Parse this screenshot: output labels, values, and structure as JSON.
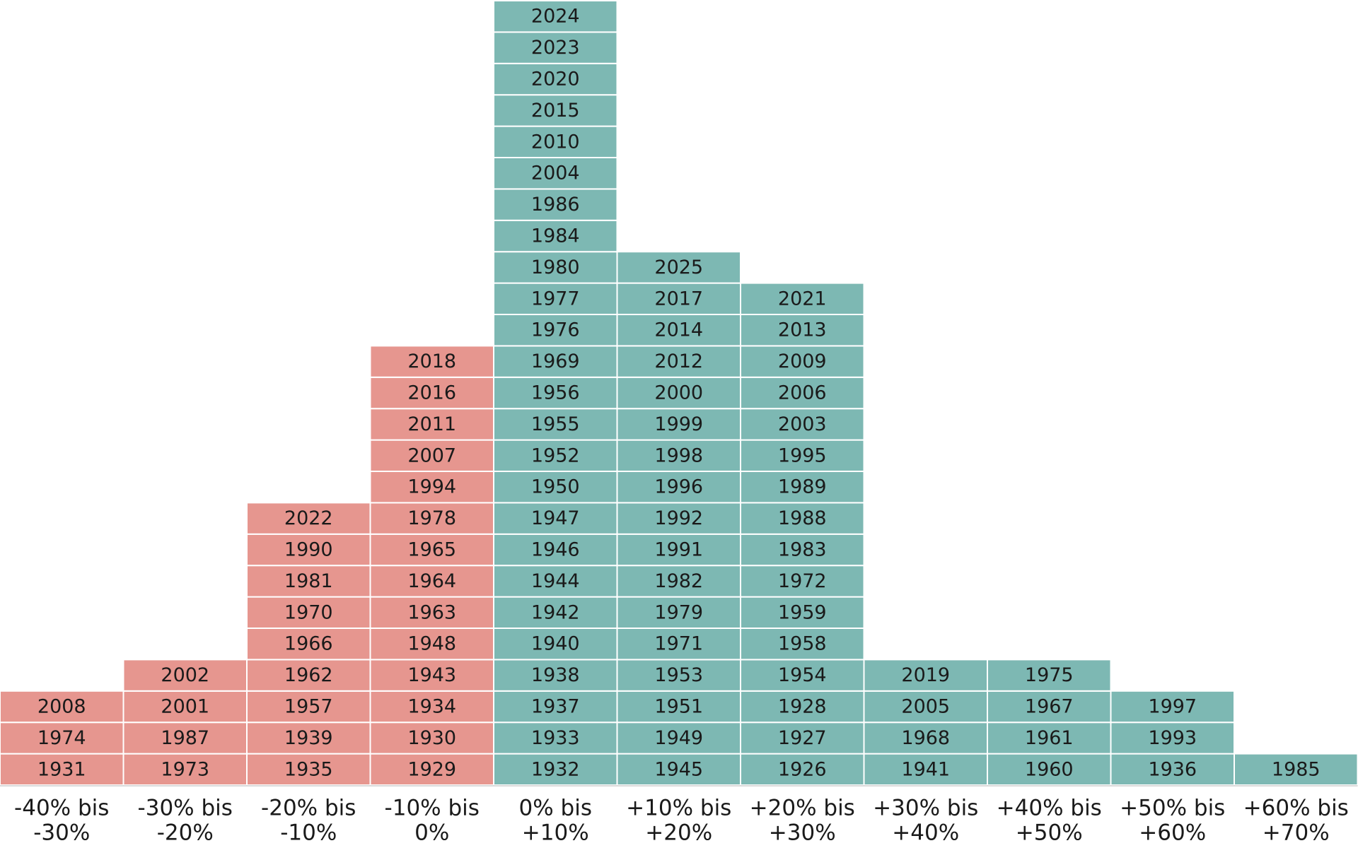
{
  "colors": {
    "negative": "#e6968f",
    "positive": "#7db8b3",
    "cell_border": "#ffffff",
    "axis_line": "#d9d9d9",
    "text": "#1a1a1a"
  },
  "chart_data": {
    "type": "histogram-stack",
    "title": "",
    "bins": [
      {
        "label_line1": "-40% bis",
        "label_line2": "-30%",
        "range": [
          -40,
          -30
        ],
        "sign": "negative",
        "years": [
          "1931",
          "1974",
          "2008"
        ]
      },
      {
        "label_line1": "-30% bis",
        "label_line2": "-20%",
        "range": [
          -30,
          -20
        ],
        "sign": "negative",
        "years": [
          "1973",
          "1987",
          "2001",
          "2002"
        ]
      },
      {
        "label_line1": "-20% bis",
        "label_line2": "-10%",
        "range": [
          -20,
          -10
        ],
        "sign": "negative",
        "years": [
          "1935",
          "1939",
          "1957",
          "1962",
          "1966",
          "1970",
          "1981",
          "1990",
          "2022"
        ]
      },
      {
        "label_line1": "-10% bis",
        "label_line2": "0%",
        "range": [
          -10,
          0
        ],
        "sign": "negative",
        "years": [
          "1929",
          "1930",
          "1934",
          "1943",
          "1948",
          "1963",
          "1964",
          "1965",
          "1978",
          "1994",
          "2007",
          "2011",
          "2016",
          "2018"
        ]
      },
      {
        "label_line1": "0% bis",
        "label_line2": "+10%",
        "range": [
          0,
          10
        ],
        "sign": "positive",
        "years": [
          "1932",
          "1933",
          "1937",
          "1938",
          "1940",
          "1942",
          "1944",
          "1946",
          "1947",
          "1950",
          "1952",
          "1955",
          "1956",
          "1969",
          "1976",
          "1977",
          "1980",
          "1984",
          "1986",
          "2004",
          "2010",
          "2015",
          "2020",
          "2023",
          "2024"
        ]
      },
      {
        "label_line1": "+10% bis",
        "label_line2": "+20%",
        "range": [
          10,
          20
        ],
        "sign": "positive",
        "years": [
          "1945",
          "1949",
          "1951",
          "1953",
          "1971",
          "1979",
          "1982",
          "1991",
          "1992",
          "1996",
          "1998",
          "1999",
          "2000",
          "2012",
          "2014",
          "2017",
          "2025"
        ]
      },
      {
        "label_line1": "+20% bis",
        "label_line2": "+30%",
        "range": [
          20,
          30
        ],
        "sign": "positive",
        "years": [
          "1926",
          "1927",
          "1928",
          "1954",
          "1958",
          "1959",
          "1972",
          "1983",
          "1988",
          "1989",
          "1995",
          "2003",
          "2006",
          "2009",
          "2013",
          "2021"
        ]
      },
      {
        "label_line1": "+30% bis",
        "label_line2": "+40%",
        "range": [
          30,
          40
        ],
        "sign": "positive",
        "years": [
          "1941",
          "1968",
          "2005",
          "2019"
        ]
      },
      {
        "label_line1": "+40% bis",
        "label_line2": "+50%",
        "range": [
          40,
          50
        ],
        "sign": "positive",
        "years": [
          "1960",
          "1961",
          "1967",
          "1975"
        ]
      },
      {
        "label_line1": "+50% bis",
        "label_line2": "+60%",
        "range": [
          50,
          60
        ],
        "sign": "positive",
        "years": [
          "1936",
          "1993",
          "1997"
        ]
      },
      {
        "label_line1": "+60% bis",
        "label_line2": "+70%",
        "range": [
          60,
          70
        ],
        "sign": "positive",
        "years": [
          "1985"
        ]
      }
    ]
  }
}
